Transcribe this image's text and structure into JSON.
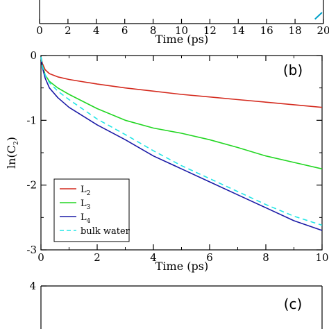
{
  "chart_data": [
    {
      "panel": "top-partial",
      "type": "line",
      "xlabel": "Time (ps)",
      "xlim": [
        0,
        20
      ],
      "xticks": [
        "0",
        "2",
        "4",
        "6",
        "8",
        "10",
        "12",
        "14",
        "16",
        "18",
        "20"
      ],
      "series": [
        {
          "color": "#00a0c8",
          "x": [
            19.4,
            19.9
          ],
          "y": [
            0.2,
            1.0
          ]
        }
      ]
    },
    {
      "panel": "b",
      "panel_label": "(b)",
      "type": "line",
      "xlabel": "Time (ps)",
      "ylabel_main": "ln(C",
      "ylabel_sub": "2",
      "ylabel_close": ")",
      "xlim": [
        0,
        10
      ],
      "ylim": [
        -3,
        0
      ],
      "xticks": [
        "0",
        "2",
        "4",
        "6",
        "8",
        "10"
      ],
      "yticks": [
        "0",
        "-1",
        "-2",
        "-3"
      ],
      "legend_position": "bottom-left",
      "series": [
        {
          "name_main": "L",
          "name_sub": "2",
          "color": "#d42a1e",
          "dash": false,
          "x": [
            0,
            0.05,
            0.15,
            0.3,
            0.6,
            1,
            2,
            3,
            4,
            5,
            6,
            7,
            8,
            9,
            10
          ],
          "y": [
            -0.02,
            -0.12,
            -0.22,
            -0.28,
            -0.33,
            -0.37,
            -0.44,
            -0.5,
            -0.55,
            -0.6,
            -0.64,
            -0.68,
            -0.72,
            -0.76,
            -0.8
          ]
        },
        {
          "name_main": "L",
          "name_sub": "3",
          "color": "#22d622",
          "dash": false,
          "x": [
            0,
            0.05,
            0.15,
            0.3,
            0.6,
            1,
            2,
            3,
            4,
            5,
            6,
            7,
            8,
            9,
            10
          ],
          "y": [
            -0.02,
            -0.15,
            -0.3,
            -0.4,
            -0.5,
            -0.6,
            -0.82,
            -1.0,
            -1.12,
            -1.2,
            -1.3,
            -1.42,
            -1.55,
            -1.65,
            -1.75
          ]
        },
        {
          "name_main": "L",
          "name_sub": "4",
          "color": "#1a1aa6",
          "dash": false,
          "x": [
            0,
            0.05,
            0.15,
            0.3,
            0.6,
            1,
            2,
            3,
            4,
            5,
            6,
            7,
            8,
            9,
            10
          ],
          "y": [
            -0.02,
            -0.18,
            -0.35,
            -0.5,
            -0.65,
            -0.8,
            -1.07,
            -1.3,
            -1.55,
            -1.75,
            -1.95,
            -2.15,
            -2.35,
            -2.55,
            -2.7
          ]
        },
        {
          "name_main": "bulk water",
          "name_sub": "",
          "color": "#22e6e6",
          "dash": true,
          "x": [
            0,
            0.05,
            0.15,
            0.3,
            0.6,
            1,
            2,
            3,
            4,
            5,
            6,
            7,
            8,
            9,
            10
          ],
          "y": [
            -0.02,
            -0.16,
            -0.3,
            -0.42,
            -0.55,
            -0.68,
            -0.98,
            -1.22,
            -1.47,
            -1.7,
            -1.9,
            -2.1,
            -2.3,
            -2.48,
            -2.62
          ]
        }
      ]
    },
    {
      "panel": "c",
      "panel_label": "(c)",
      "type": "line",
      "ylim_top_tick": "4"
    }
  ]
}
